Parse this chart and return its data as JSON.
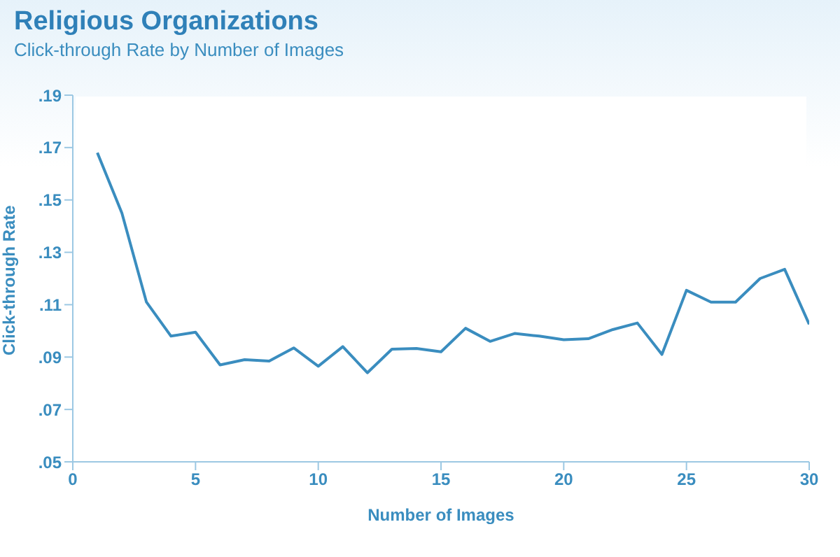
{
  "chart_data": {
    "type": "line",
    "title": "Religious Organizations",
    "subtitle": "Click-through Rate by Number of Images",
    "xlabel": "Number of Images",
    "ylabel": "Click-through Rate",
    "x": [
      1,
      2,
      3,
      4,
      5,
      6,
      7,
      8,
      9,
      10,
      11,
      12,
      13,
      14,
      15,
      16,
      17,
      18,
      19,
      20,
      21,
      22,
      23,
      24,
      25,
      26,
      27,
      28,
      29,
      30
    ],
    "series": [
      {
        "color": "#3a8dbf",
        "values": [
          0.168,
          0.145,
          0.111,
          0.098,
          0.0995,
          0.087,
          0.089,
          0.0885,
          0.0935,
          0.0865,
          0.094,
          0.084,
          0.093,
          0.0933,
          0.092,
          0.101,
          0.096,
          0.099,
          0.098,
          0.0966,
          0.097,
          0.1005,
          0.103,
          0.091,
          0.1155,
          0.111,
          0.111,
          0.12,
          0.1235,
          0.1025
        ]
      }
    ],
    "xlim": [
      0,
      30
    ],
    "xticks": [
      0,
      5,
      10,
      15,
      20,
      25,
      30
    ],
    "ylim": [
      0.05,
      0.19
    ],
    "yticks": [
      {
        "value": 0.05,
        "label": ".05"
      },
      {
        "value": 0.07,
        "label": ".07"
      },
      {
        "value": 0.09,
        "label": ".09"
      },
      {
        "value": 0.11,
        "label": ".11"
      },
      {
        "value": 0.13,
        "label": ".13"
      },
      {
        "value": 0.15,
        "label": ".15"
      },
      {
        "value": 0.17,
        "label": ".17"
      },
      {
        "value": 0.19,
        "label": ".19"
      }
    ],
    "grid": false,
    "legend": false,
    "marker": "none",
    "line_style": "solid"
  }
}
